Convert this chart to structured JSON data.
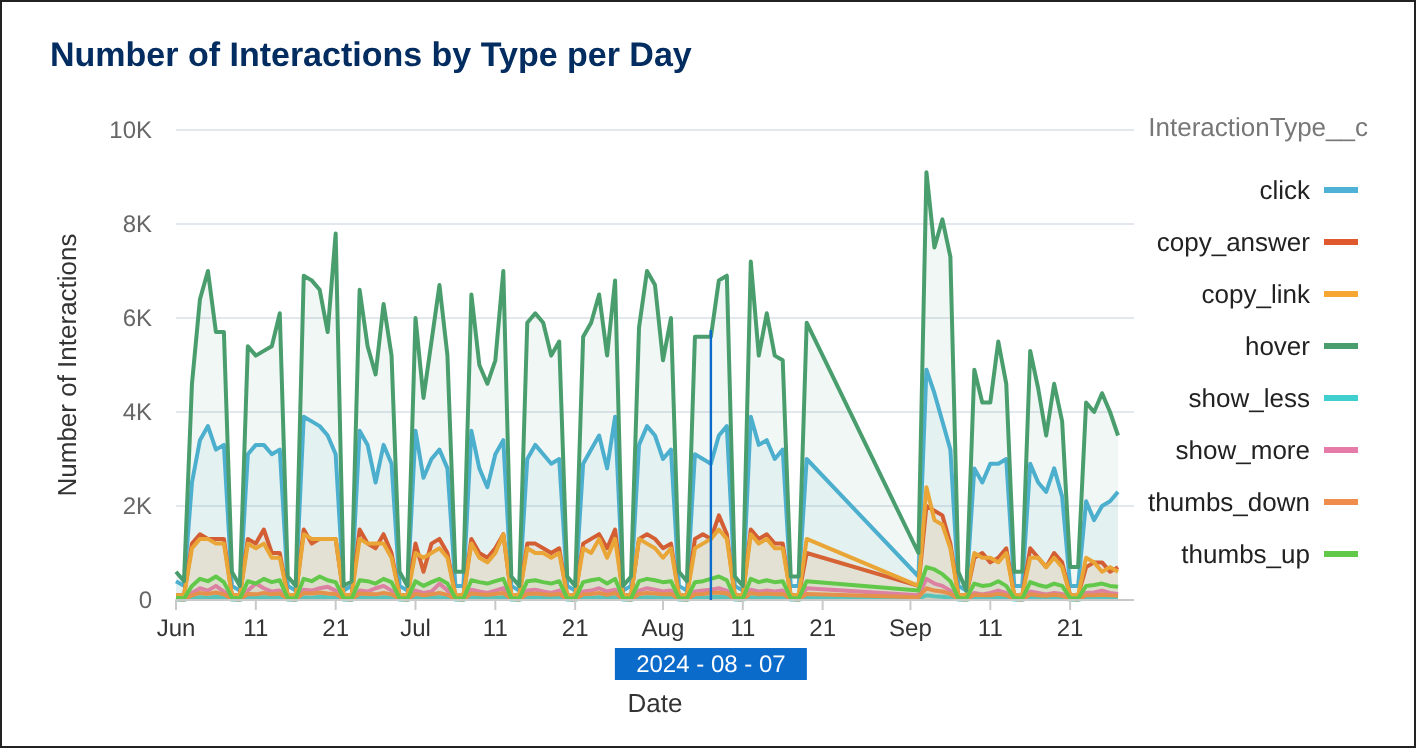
{
  "chart_data": {
    "type": "area",
    "title": "Number of Interactions by Type per Day",
    "xlabel": "Date",
    "ylabel": "Number of Interactions",
    "legend_title": "InteractionType__c",
    "legend": "right",
    "grid": "y",
    "marker": "none",
    "line_style": "solid",
    "x": [
      "2024-06-01",
      "2024-06-02",
      "2024-06-03",
      "2024-06-04",
      "2024-06-05",
      "2024-06-06",
      "2024-06-07",
      "2024-06-08",
      "2024-06-09",
      "2024-06-10",
      "2024-06-11",
      "2024-06-12",
      "2024-06-13",
      "2024-06-14",
      "2024-06-15",
      "2024-06-16",
      "2024-06-17",
      "2024-06-18",
      "2024-06-19",
      "2024-06-20",
      "2024-06-21",
      "2024-06-22",
      "2024-06-23",
      "2024-06-24",
      "2024-06-25",
      "2024-06-26",
      "2024-06-27",
      "2024-06-28",
      "2024-06-29",
      "2024-06-30",
      "2024-07-01",
      "2024-07-02",
      "2024-07-03",
      "2024-07-04",
      "2024-07-05",
      "2024-07-06",
      "2024-07-07",
      "2024-07-08",
      "2024-07-09",
      "2024-07-10",
      "2024-07-11",
      "2024-07-12",
      "2024-07-13",
      "2024-07-14",
      "2024-07-15",
      "2024-07-16",
      "2024-07-17",
      "2024-07-18",
      "2024-07-19",
      "2024-07-20",
      "2024-07-21",
      "2024-07-22",
      "2024-07-23",
      "2024-07-24",
      "2024-07-25",
      "2024-07-26",
      "2024-07-27",
      "2024-07-28",
      "2024-07-29",
      "2024-07-30",
      "2024-07-31",
      "2024-08-01",
      "2024-08-02",
      "2024-08-03",
      "2024-08-04",
      "2024-08-05",
      "2024-08-06",
      "2024-08-07",
      "2024-08-08",
      "2024-08-09",
      "2024-08-10",
      "2024-08-11",
      "2024-08-12",
      "2024-08-13",
      "2024-08-14",
      "2024-08-15",
      "2024-08-16",
      "2024-08-17",
      "2024-08-18",
      "2024-08-19",
      "2024-09-02",
      "2024-09-03",
      "2024-09-04",
      "2024-09-05",
      "2024-09-06",
      "2024-09-07",
      "2024-09-08",
      "2024-09-09",
      "2024-09-10",
      "2024-09-11",
      "2024-09-12",
      "2024-09-13",
      "2024-09-14",
      "2024-09-15",
      "2024-09-16",
      "2024-09-17",
      "2024-09-18",
      "2024-09-19",
      "2024-09-20",
      "2024-09-21",
      "2024-09-22",
      "2024-09-23",
      "2024-09-24",
      "2024-09-25",
      "2024-09-26",
      "2024-09-27"
    ],
    "xlim": [
      "2024-06-01",
      "2024-09-29"
    ],
    "xticks": [
      {
        "value": "2024-06-01",
        "label": "Jun"
      },
      {
        "value": "2024-06-11",
        "label": "11"
      },
      {
        "value": "2024-06-21",
        "label": "21"
      },
      {
        "value": "2024-07-01",
        "label": "Jul"
      },
      {
        "value": "2024-07-11",
        "label": "11"
      },
      {
        "value": "2024-07-21",
        "label": "21"
      },
      {
        "value": "2024-08-01",
        "label": "Aug"
      },
      {
        "value": "2024-08-11",
        "label": "11"
      },
      {
        "value": "2024-08-21",
        "label": "21"
      },
      {
        "value": "2024-09-01",
        "label": "Sep"
      },
      {
        "value": "2024-09-11",
        "label": "11"
      },
      {
        "value": "2024-09-21",
        "label": "21"
      }
    ],
    "ylim": [
      0,
      10000
    ],
    "yticks": [
      0,
      {
        "value": 2000,
        "label": "2K"
      },
      {
        "value": 4000,
        "label": "4K"
      },
      {
        "value": 6000,
        "label": "6K"
      },
      {
        "value": 8000,
        "label": "8K"
      },
      {
        "value": 10000,
        "label": "10K"
      }
    ],
    "ref_lines": [
      {
        "axis": "x",
        "value": "2024-08-07",
        "label": "2024 - 08 - 07",
        "color": "#0b6bcb"
      }
    ],
    "series": [
      {
        "name": "click",
        "color": "#4eb1d6",
        "values": [
          400,
          300,
          2500,
          3400,
          3700,
          3200,
          3300,
          300,
          200,
          3100,
          3300,
          3300,
          3100,
          3200,
          300,
          200,
          3900,
          3800,
          3700,
          3500,
          3100,
          200,
          300,
          3600,
          3300,
          2500,
          3300,
          2900,
          300,
          200,
          3600,
          2600,
          3000,
          3200,
          2800,
          300,
          300,
          3600,
          2800,
          2400,
          3100,
          3400,
          300,
          200,
          3000,
          3300,
          3100,
          2900,
          3000,
          300,
          200,
          2900,
          3200,
          3500,
          2800,
          3900,
          200,
          300,
          3300,
          3700,
          3500,
          3000,
          3200,
          300,
          200,
          3100,
          3000,
          2900,
          3500,
          3700,
          300,
          200,
          3900,
          3300,
          3400,
          3000,
          3200,
          300,
          300,
          3000,
          500,
          4900,
          4400,
          3800,
          3200,
          300,
          200,
          2800,
          2500,
          2900,
          2900,
          3000,
          300,
          300,
          2900,
          2500,
          2300,
          2800,
          2200,
          300,
          300,
          2100,
          1700,
          2000,
          2100,
          2300
        ]
      },
      {
        "name": "copy_answer",
        "color": "#e0592e",
        "values": [
          100,
          100,
          1200,
          1400,
          1300,
          1300,
          1300,
          100,
          100,
          1300,
          1200,
          1500,
          1000,
          1000,
          100,
          100,
          1500,
          1200,
          1300,
          1300,
          1300,
          100,
          100,
          1500,
          1200,
          1100,
          1400,
          1000,
          100,
          100,
          1200,
          600,
          1200,
          1300,
          1000,
          100,
          100,
          1300,
          1000,
          900,
          1100,
          1400,
          100,
          100,
          1200,
          1200,
          1100,
          1000,
          1100,
          100,
          100,
          1200,
          1300,
          1400,
          1100,
          1500,
          100,
          100,
          1300,
          1400,
          1300,
          1100,
          1200,
          100,
          100,
          1300,
          1400,
          1300,
          1800,
          1400,
          100,
          100,
          1500,
          1300,
          1400,
          1200,
          1200,
          100,
          100,
          1000,
          300,
          2000,
          1900,
          1800,
          1200,
          100,
          100,
          900,
          1000,
          800,
          900,
          1100,
          100,
          100,
          1100,
          900,
          700,
          1000,
          800,
          100,
          100,
          700,
          800,
          800,
          600,
          700
        ]
      },
      {
        "name": "copy_link",
        "color": "#f7a731",
        "values": [
          100,
          100,
          1100,
          1300,
          1300,
          1200,
          1200,
          100,
          100,
          1200,
          1100,
          1200,
          900,
          900,
          100,
          100,
          1400,
          1300,
          1300,
          1300,
          1300,
          100,
          100,
          1300,
          1200,
          1200,
          1200,
          900,
          100,
          100,
          1000,
          900,
          1000,
          1100,
          900,
          100,
          100,
          1200,
          900,
          800,
          1000,
          1400,
          100,
          100,
          1100,
          1000,
          1000,
          900,
          1000,
          100,
          100,
          1100,
          1000,
          1300,
          900,
          1300,
          100,
          100,
          1300,
          1200,
          1100,
          900,
          1100,
          100,
          100,
          1100,
          1200,
          1300,
          1500,
          1300,
          100,
          100,
          1400,
          1200,
          1300,
          1100,
          1100,
          100,
          100,
          1300,
          300,
          2400,
          1700,
          1600,
          1100,
          100,
          100,
          1000,
          900,
          900,
          800,
          1000,
          100,
          100,
          900,
          900,
          700,
          900,
          700,
          100,
          100,
          900,
          800,
          600,
          700,
          600
        ]
      },
      {
        "name": "hover",
        "color": "#4a9e6e",
        "values": [
          600,
          400,
          4600,
          6400,
          7000,
          5700,
          5700,
          600,
          300,
          5400,
          5200,
          5300,
          5400,
          6100,
          500,
          300,
          6900,
          6800,
          6600,
          5700,
          7800,
          300,
          400,
          6600,
          5400,
          4800,
          6300,
          5200,
          600,
          300,
          6000,
          4300,
          5500,
          6700,
          5200,
          600,
          600,
          6500,
          5000,
          4600,
          5100,
          7000,
          500,
          300,
          5900,
          6100,
          5900,
          5200,
          5500,
          500,
          300,
          5600,
          5900,
          6500,
          5200,
          6800,
          300,
          500,
          5800,
          7000,
          6700,
          5100,
          6000,
          600,
          400,
          5600,
          5600,
          5600,
          6800,
          6900,
          500,
          300,
          7200,
          5200,
          6100,
          5200,
          5100,
          500,
          500,
          5900,
          1000,
          9100,
          7500,
          8100,
          7300,
          600,
          200,
          4900,
          4200,
          4200,
          5500,
          4600,
          600,
          600,
          5300,
          4500,
          3500,
          4600,
          3800,
          700,
          700,
          4200,
          4000,
          4400,
          4000,
          3500
        ]
      },
      {
        "name": "show_less",
        "color": "#3fcfcf",
        "values": [
          10,
          5,
          40,
          60,
          50,
          70,
          50,
          10,
          5,
          50,
          60,
          60,
          50,
          60,
          10,
          5,
          60,
          50,
          70,
          60,
          50,
          10,
          5,
          60,
          50,
          50,
          60,
          50,
          10,
          5,
          50,
          40,
          50,
          60,
          50,
          10,
          5,
          60,
          50,
          40,
          50,
          60,
          10,
          5,
          50,
          60,
          50,
          40,
          50,
          10,
          5,
          50,
          50,
          60,
          40,
          60,
          10,
          5,
          50,
          60,
          60,
          50,
          50,
          10,
          5,
          50,
          50,
          60,
          70,
          60,
          10,
          5,
          60,
          50,
          60,
          50,
          50,
          10,
          5,
          50,
          30,
          100,
          80,
          70,
          50,
          10,
          5,
          40,
          40,
          40,
          50,
          40,
          10,
          5,
          50,
          40,
          40,
          40,
          40,
          10,
          5,
          40,
          40,
          50,
          40,
          40
        ]
      },
      {
        "name": "show_more",
        "color": "#e67ba9",
        "values": [
          40,
          20,
          150,
          250,
          200,
          300,
          180,
          30,
          20,
          200,
          350,
          250,
          180,
          200,
          30,
          20,
          220,
          200,
          250,
          280,
          200,
          30,
          20,
          200,
          180,
          250,
          300,
          200,
          30,
          20,
          200,
          150,
          180,
          350,
          200,
          30,
          20,
          220,
          180,
          150,
          200,
          250,
          30,
          20,
          200,
          220,
          180,
          150,
          200,
          30,
          20,
          180,
          200,
          250,
          180,
          220,
          30,
          20,
          200,
          250,
          220,
          180,
          200,
          30,
          20,
          180,
          200,
          220,
          250,
          200,
          30,
          20,
          220,
          180,
          200,
          180,
          200,
          30,
          20,
          250,
          100,
          450,
          350,
          300,
          200,
          30,
          20,
          150,
          120,
          150,
          200,
          150,
          30,
          20,
          180,
          150,
          120,
          150,
          130,
          30,
          20,
          150,
          160,
          200,
          150,
          130
        ]
      },
      {
        "name": "thumbs_down",
        "color": "#f08c4c",
        "values": [
          20,
          10,
          100,
          150,
          130,
          160,
          120,
          20,
          10,
          130,
          120,
          150,
          120,
          140,
          20,
          10,
          150,
          140,
          160,
          140,
          130,
          20,
          10,
          140,
          130,
          120,
          150,
          120,
          20,
          10,
          130,
          100,
          120,
          150,
          110,
          20,
          10,
          140,
          120,
          110,
          130,
          150,
          20,
          10,
          130,
          140,
          120,
          110,
          130,
          20,
          10,
          120,
          130,
          150,
          110,
          150,
          20,
          10,
          130,
          150,
          140,
          120,
          130,
          20,
          10,
          120,
          130,
          150,
          160,
          140,
          20,
          10,
          150,
          120,
          140,
          120,
          130,
          20,
          10,
          130,
          60,
          250,
          200,
          180,
          130,
          20,
          10,
          110,
          100,
          100,
          130,
          100,
          20,
          10,
          120,
          100,
          90,
          110,
          90,
          20,
          10,
          100,
          100,
          110,
          100,
          90
        ]
      },
      {
        "name": "thumbs_up",
        "color": "#62c84a",
        "values": [
          50,
          30,
          300,
          450,
          400,
          500,
          380,
          50,
          30,
          400,
          350,
          450,
          380,
          420,
          40,
          30,
          450,
          400,
          500,
          420,
          380,
          40,
          30,
          420,
          400,
          350,
          450,
          380,
          40,
          30,
          400,
          300,
          380,
          450,
          350,
          40,
          30,
          420,
          380,
          350,
          400,
          450,
          40,
          30,
          400,
          420,
          380,
          350,
          400,
          40,
          30,
          380,
          420,
          450,
          350,
          450,
          40,
          30,
          400,
          450,
          420,
          380,
          400,
          40,
          30,
          380,
          400,
          450,
          500,
          420,
          40,
          30,
          450,
          380,
          420,
          380,
          400,
          40,
          30,
          400,
          200,
          700,
          650,
          550,
          400,
          40,
          30,
          350,
          300,
          320,
          400,
          300,
          40,
          30,
          380,
          320,
          280,
          350,
          300,
          40,
          30,
          300,
          320,
          350,
          300,
          280
        ]
      }
    ]
  }
}
